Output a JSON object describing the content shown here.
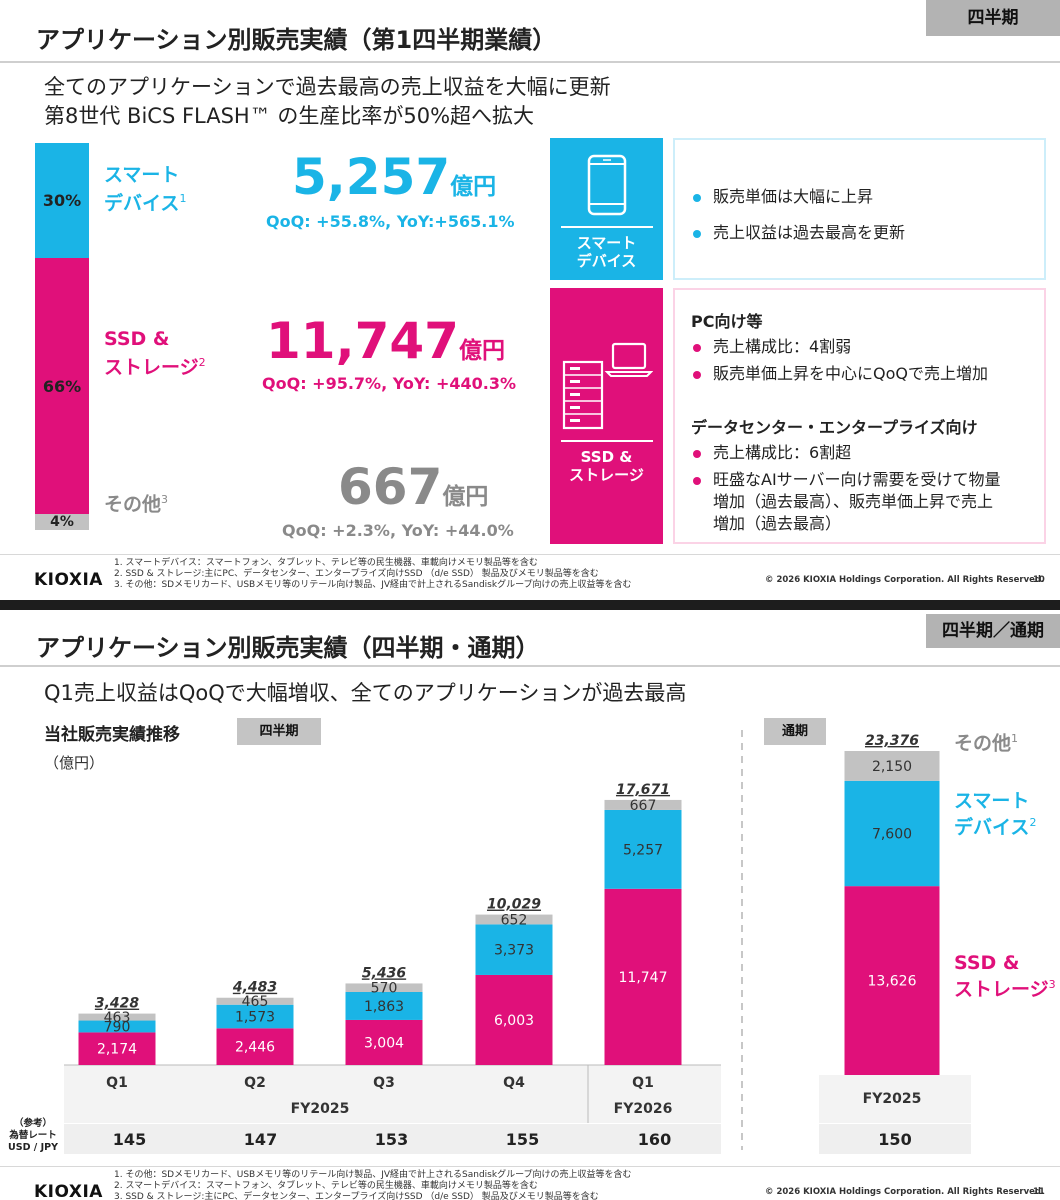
{
  "colors": {
    "smart": "#1ab4e6",
    "ssd": "#e0107a",
    "other": "#c2c2c2",
    "other_text": "#8a8a8a",
    "badge": "#b3b3b3"
  },
  "slide1": {
    "title": "アプリケーション別販売実績（第1四半期業績）",
    "period_badge": "四半期",
    "headline": [
      "全てのアプリケーションで過去最高の売上収益を大幅に更新",
      "第8世代 BiCS FLASH™ の生産比率が50%超へ拡大"
    ],
    "mix_bar": [
      {
        "key": "smart",
        "share_label": "30%",
        "share": 30
      },
      {
        "key": "ssd",
        "share_label": "66%",
        "share": 66
      },
      {
        "key": "other",
        "share_label": "4%",
        "share": 4
      }
    ],
    "segments": {
      "smart": {
        "name_line1": "スマート",
        "name_line2": "デバイス",
        "note": "1",
        "value": "5,257",
        "unit": "億円",
        "growth": "QoQ: +55.8%, YoY:+565.1%"
      },
      "ssd": {
        "name_line1": "SSD &",
        "name_line2": "ストレージ",
        "note": "2",
        "value": "11,747",
        "unit": "億円",
        "growth": "QoQ: +95.7%, YoY: +440.3%"
      },
      "other": {
        "name_line1": "その他",
        "note": "3",
        "value": "667",
        "unit": "億円",
        "growth": "QoQ: +2.3%, YoY: +44.0%"
      }
    },
    "smart_panel": {
      "icon_label_line1": "スマート",
      "icon_label_line2": "デバイス",
      "bullets": [
        "販売単価は大幅に上昇",
        "売上収益は過去最高を更新"
      ]
    },
    "ssd_panel": {
      "icon_label_line1": "SSD &",
      "icon_label_line2": "ストレージ",
      "pc_heading": "PC向け等",
      "pc_bullets": [
        "売上構成比：4割弱",
        "販売単価上昇を中心にQoQで売上増加"
      ],
      "dc_heading": "データセンター・エンタープライズ向け",
      "dc_bullets": [
        "売上構成比：6割超",
        "旺盛なAIサーバー向け需要を受けて物量",
        "増加（過去最高）、販売単価上昇で売上",
        "増加（過去最高）"
      ]
    },
    "footer": {
      "logo": "KIOXIA",
      "notes": [
        "1. スマートデバイス：スマートフォン、タブレット、テレビ等の民生機器、車載向けメモリ製品等を含む",
        "2. SSD & ストレージ:主にPC、データセンター、エンタープライズ向けSSD （d/e SSD） 製品及びメモリ製品等を含む",
        "3. その他：SDメモリカード、USBメモリ等のリテール向け製品、JV経由で計上されるSandiskグループ向けの売上収益等を含む"
      ],
      "copyright": "© 2026 KIOXIA Holdings Corporation. All Rights Reserved.",
      "page": "10"
    }
  },
  "slide2": {
    "title": "アプリケーション別販売実績（四半期・通期）",
    "period_badge": "四半期／通期",
    "headline": "Q1売上収益はQoQで大幅増収、全てのアプリケーションが過去最高",
    "chart_heading": "当社販売実績推移",
    "unit": "（億円）",
    "quarterly_tag": "四半期",
    "annual_tag": "通期",
    "legend": {
      "other": {
        "line1": "その他",
        "note": "1"
      },
      "smart": {
        "line1": "スマート",
        "line2": "デバイス",
        "note": "2"
      },
      "ssd": {
        "line1": "SSD &",
        "line2": "ストレージ",
        "note": "3"
      }
    },
    "fy2025_label": "FY2025",
    "fy2026_label": "FY2026",
    "fx": {
      "label_line1": "（参考）",
      "label_line2": "為替レート",
      "label_line3": "USD / JPY",
      "quarterly": [
        "145",
        "147",
        "153",
        "155",
        "160"
      ],
      "annual": "150"
    },
    "footer": {
      "logo": "KIOXIA",
      "notes": [
        "1. その他：SDメモリカード、USBメモリ等のリテール向け製品、JV経由で計上されるSandiskグループ向けの売上収益等を含む",
        "2. スマートデバイス：スマートフォン、タブレット、テレビ等の民生機器、車載向けメモリ製品等を含む",
        "3. SSD & ストレージ:主にPC、データセンター、エンタープライズ向けSSD （d/e SSD） 製品及びメモリ製品等を含む"
      ],
      "copyright": "© 2026 KIOXIA Holdings Corporation. All Rights Reserved.",
      "page": "11"
    }
  },
  "chart_data": [
    {
      "type": "bar",
      "stacked": true,
      "title": "当社販売実績推移",
      "ylabel": "（億円）",
      "categories": [
        "Q1",
        "Q2",
        "Q3",
        "Q4",
        "Q1"
      ],
      "category_groups": [
        "FY2025",
        "FY2025",
        "FY2025",
        "FY2025",
        "FY2026"
      ],
      "series": [
        {
          "name": "SSD & ストレージ",
          "color": "#e0107a",
          "values": [
            2174,
            2446,
            3004,
            6003,
            11747
          ],
          "labels": [
            "2,174",
            "2,446",
            "3,004",
            "6,003",
            "11,747"
          ]
        },
        {
          "name": "スマートデバイス",
          "color": "#1ab4e6",
          "values": [
            790,
            1573,
            1863,
            3373,
            5257
          ],
          "labels": [
            "790",
            "1,573",
            "1,863",
            "3,373",
            "5,257"
          ]
        },
        {
          "name": "その他",
          "color": "#c2c2c2",
          "values": [
            463,
            465,
            570,
            652,
            667
          ],
          "labels": [
            "463",
            "465",
            "570",
            "652",
            "667"
          ]
        }
      ],
      "totals": [
        3428,
        4483,
        5436,
        10029,
        17671
      ],
      "total_labels": [
        "3,428",
        "4,483",
        "5,436",
        "10,029",
        "17,671"
      ],
      "ylim": [
        0,
        18500
      ],
      "grid": false
    },
    {
      "type": "bar",
      "stacked": true,
      "title": "通期",
      "categories": [
        "FY2025"
      ],
      "series": [
        {
          "name": "SSD & ストレージ",
          "color": "#e0107a",
          "values": [
            13626
          ],
          "labels": [
            "13,626"
          ]
        },
        {
          "name": "スマートデバイス",
          "color": "#1ab4e6",
          "values": [
            7600
          ],
          "labels": [
            "7,600"
          ]
        },
        {
          "name": "その他",
          "color": "#c2c2c2",
          "values": [
            2150
          ],
          "labels": [
            "2,150"
          ]
        }
      ],
      "totals": [
        23376
      ],
      "total_labels": [
        "23,376"
      ],
      "ylim": [
        0,
        23376
      ],
      "grid": false
    }
  ]
}
